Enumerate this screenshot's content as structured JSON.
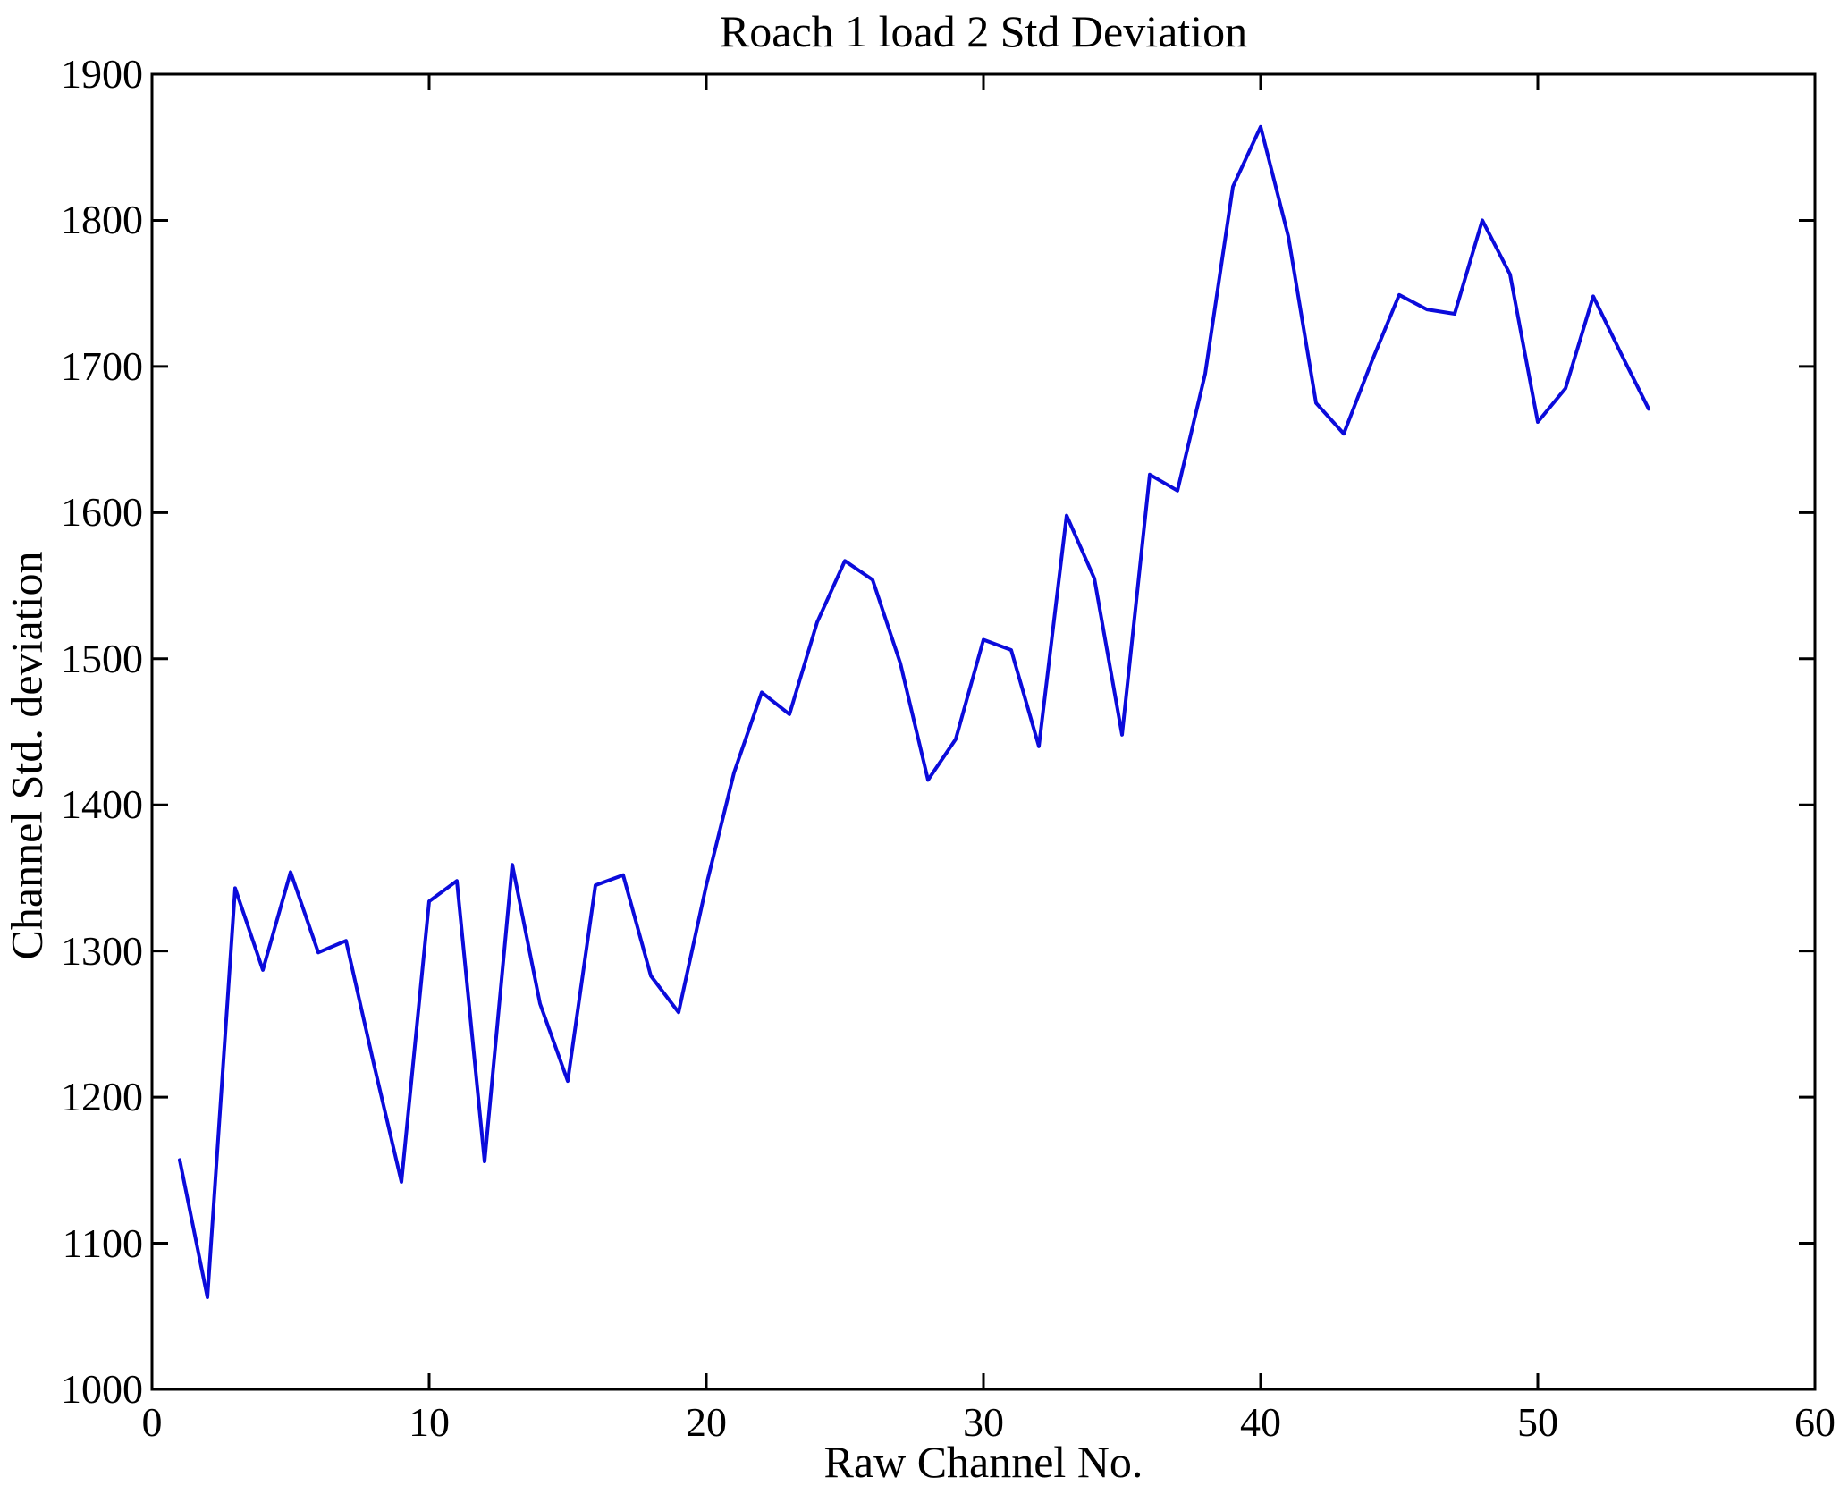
{
  "chart_data": {
    "type": "line",
    "title": "Roach 1 load 2 Std Deviation",
    "xlabel": "Raw Channel No.",
    "ylabel": "Channel Std. deviation",
    "xlim": [
      0,
      60
    ],
    "ylim": [
      1000,
      1900
    ],
    "xticks": [
      0,
      10,
      20,
      30,
      40,
      50,
      60
    ],
    "yticks": [
      1000,
      1100,
      1200,
      1300,
      1400,
      1500,
      1600,
      1700,
      1800,
      1900
    ],
    "grid": false,
    "legend": null,
    "line_color": "#0b0bdb",
    "axis_color": "#000000",
    "background_color": "#ffffff",
    "series": [
      {
        "name": "Channel Std deviation",
        "x": [
          1,
          2,
          3,
          4,
          5,
          6,
          7,
          8,
          9,
          10,
          11,
          12,
          13,
          14,
          15,
          16,
          17,
          18,
          19,
          20,
          21,
          22,
          23,
          24,
          25,
          26,
          27,
          28,
          29,
          30,
          31,
          32,
          33,
          34,
          35,
          36,
          37,
          38,
          39,
          40,
          41,
          42,
          43,
          44,
          45,
          46,
          47,
          48,
          49,
          50,
          51,
          52,
          53,
          54
        ],
        "y": [
          1157,
          1063,
          1343,
          1287,
          1354,
          1299,
          1307,
          1223,
          1142,
          1334,
          1348,
          1156,
          1359,
          1264,
          1211,
          1345,
          1352,
          1283,
          1258,
          1345,
          1422,
          1477,
          1462,
          1525,
          1567,
          1554,
          1497,
          1417,
          1445,
          1513,
          1506,
          1440,
          1598,
          1555,
          1448,
          1626,
          1615,
          1695,
          1823,
          1864,
          1789,
          1675,
          1654,
          1703,
          1749,
          1739,
          1736,
          1800,
          1763,
          1662,
          1685,
          1748,
          1709,
          1671
        ]
      }
    ]
  }
}
